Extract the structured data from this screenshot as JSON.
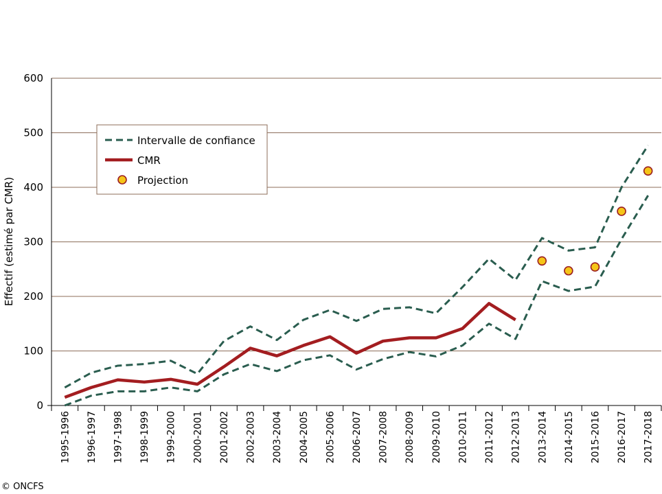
{
  "chart_data": {
    "type": "line",
    "ylabel": "Effectif (estimé par CMR)",
    "ylim": [
      0,
      600
    ],
    "yticks": [
      0,
      100,
      200,
      300,
      400,
      500,
      600
    ],
    "grid": "horizontal",
    "legend_position": "top-left",
    "categories": [
      "1995-1996",
      "1996-1997",
      "1997-1998",
      "1998-1999",
      "1999-2000",
      "2000-2001",
      "2001-2002",
      "2002-2003",
      "2003-2004",
      "2004-2005",
      "2005-2006",
      "2006-2007",
      "2007-2008",
      "2008-2009",
      "2009-2010",
      "2010-2011",
      "2011-2012",
      "2012-2013",
      "2013-2014",
      "2014-2015",
      "2015-2016",
      "2016-2017",
      "2017-2018"
    ],
    "series": [
      {
        "name": "Intervalle de confiance",
        "role": "upper",
        "color": "#2a5d4f",
        "style": "dashed",
        "values": [
          33,
          60,
          73,
          76,
          82,
          58,
          118,
          145,
          120,
          157,
          175,
          155,
          177,
          180,
          169,
          217,
          269,
          230,
          307,
          284,
          290,
          400,
          477
        ]
      },
      {
        "name": "",
        "role": "lower",
        "color": "#2a5d4f",
        "style": "dashed",
        "values": [
          0,
          18,
          26,
          26,
          33,
          26,
          57,
          76,
          63,
          83,
          92,
          66,
          85,
          98,
          90,
          110,
          150,
          122,
          228,
          210,
          218,
          305,
          385
        ]
      },
      {
        "name": "CMR",
        "color": "#a31d20",
        "style": "solid",
        "values": [
          15,
          33,
          47,
          43,
          48,
          39,
          71,
          105,
          91,
          110,
          126,
          96,
          118,
          124,
          124,
          141,
          187,
          157,
          null,
          null,
          null,
          null,
          null
        ]
      },
      {
        "name": "Projection",
        "color": "#f5c518",
        "edge": "#9b1f22",
        "style": "marker",
        "values": [
          null,
          null,
          null,
          null,
          null,
          null,
          null,
          null,
          null,
          null,
          null,
          null,
          null,
          null,
          null,
          null,
          null,
          null,
          265,
          247,
          254,
          356,
          430
        ]
      }
    ],
    "legend": [
      "Intervalle de confiance",
      "CMR",
      "Projection"
    ]
  },
  "copyright": "© ONCFS"
}
